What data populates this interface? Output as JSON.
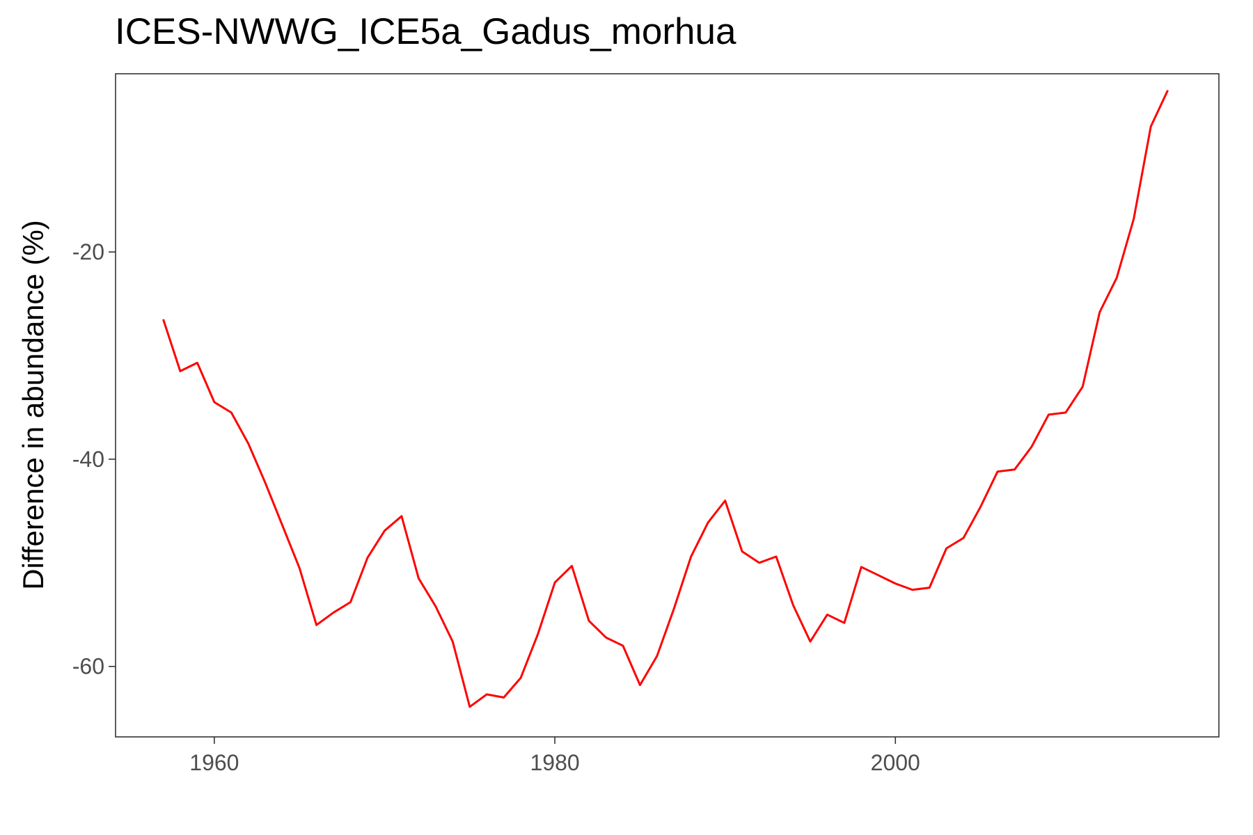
{
  "chart_data": {
    "type": "line",
    "title": "ICES-NWWG_ICE5a_Gadus_morhua",
    "xlabel": "",
    "ylabel": "Difference in abundance (%)",
    "xlim": [
      1954.2,
      2019.0
    ],
    "ylim": [
      -66.8,
      -2.8
    ],
    "x_ticks": [
      1960,
      1980,
      2000
    ],
    "y_ticks": [
      -20,
      -40,
      -60
    ],
    "x_tick_labels": [
      "1960",
      "1980",
      "2000"
    ],
    "y_tick_labels": [
      "-20",
      "-40",
      "-60"
    ],
    "grid": false,
    "legend": "none",
    "series": [
      {
        "color": "#ff0000",
        "x": [
          1957,
          1958,
          1959,
          1960,
          1961,
          1962,
          1963,
          1964,
          1965,
          1966,
          1967,
          1968,
          1969,
          1970,
          1971,
          1972,
          1973,
          1974,
          1975,
          1976,
          1977,
          1978,
          1979,
          1980,
          1981,
          1982,
          1983,
          1984,
          1985,
          1986,
          1987,
          1988,
          1989,
          1990,
          1991,
          1992,
          1993,
          1994,
          1995,
          1996,
          1997,
          1998,
          1999,
          2000,
          2001,
          2002,
          2003,
          2004,
          2005,
          2006,
          2007,
          2008,
          2009,
          2010,
          2011,
          2012,
          2013,
          2014,
          2015,
          2016
        ],
        "values": [
          -26.5,
          -31.5,
          -30.7,
          -34.5,
          -35.5,
          -38.5,
          -42.3,
          -46.4,
          -50.5,
          -56.0,
          -54.8,
          -53.8,
          -49.5,
          -46.9,
          -45.5,
          -51.5,
          -54.2,
          -57.6,
          -63.9,
          -62.7,
          -63.0,
          -61.1,
          -56.9,
          -51.9,
          -50.3,
          -55.6,
          -57.2,
          -58.0,
          -61.8,
          -59.0,
          -54.4,
          -49.4,
          -46.1,
          -44.0,
          -48.9,
          -50.0,
          -49.4,
          -54.1,
          -57.6,
          -55.0,
          -55.8,
          -50.4,
          -51.2,
          -52.0,
          -52.6,
          -52.4,
          -48.6,
          -47.6,
          -44.6,
          -41.2,
          -41.0,
          -38.8,
          -35.7,
          -35.5,
          -33.0,
          -25.8,
          -22.5,
          -16.8,
          -7.9,
          -4.4
        ]
      }
    ]
  }
}
